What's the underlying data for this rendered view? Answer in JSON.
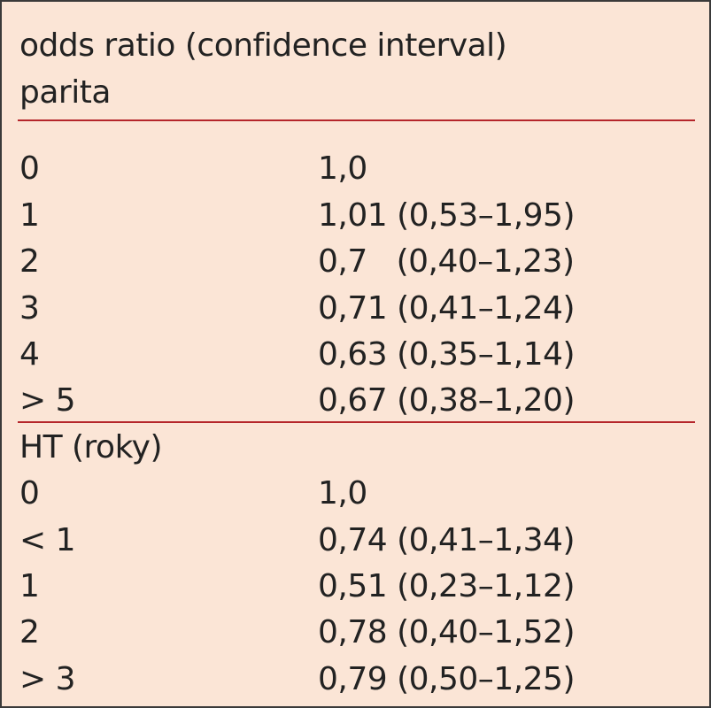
{
  "header": {
    "title": "odds ratio (confidence interval)"
  },
  "sections": [
    {
      "title": "parita",
      "rows": [
        [
          "0",
          "1,0"
        ],
        [
          "1",
          "1,01 (0,53–1,95)"
        ],
        [
          "2",
          "0,7   (0,40–1,23)"
        ],
        [
          "3",
          "0,71 (0,41–1,24)"
        ],
        [
          "4",
          "0,63 (0,35–1,14)"
        ],
        [
          "> 5",
          "0,67 (0,38–1,20)"
        ]
      ]
    },
    {
      "title": "HT (roky)",
      "rows": [
        [
          "0",
          "1,0"
        ],
        [
          "< 1",
          "0,74 (0,41–1,34)"
        ],
        [
          "1",
          "0,51 (0,23–1,12)"
        ],
        [
          "2",
          "0,78 (0,40–1,52)"
        ],
        [
          "> 3",
          "0,79 (0,50–1,25)"
        ]
      ]
    }
  ]
}
